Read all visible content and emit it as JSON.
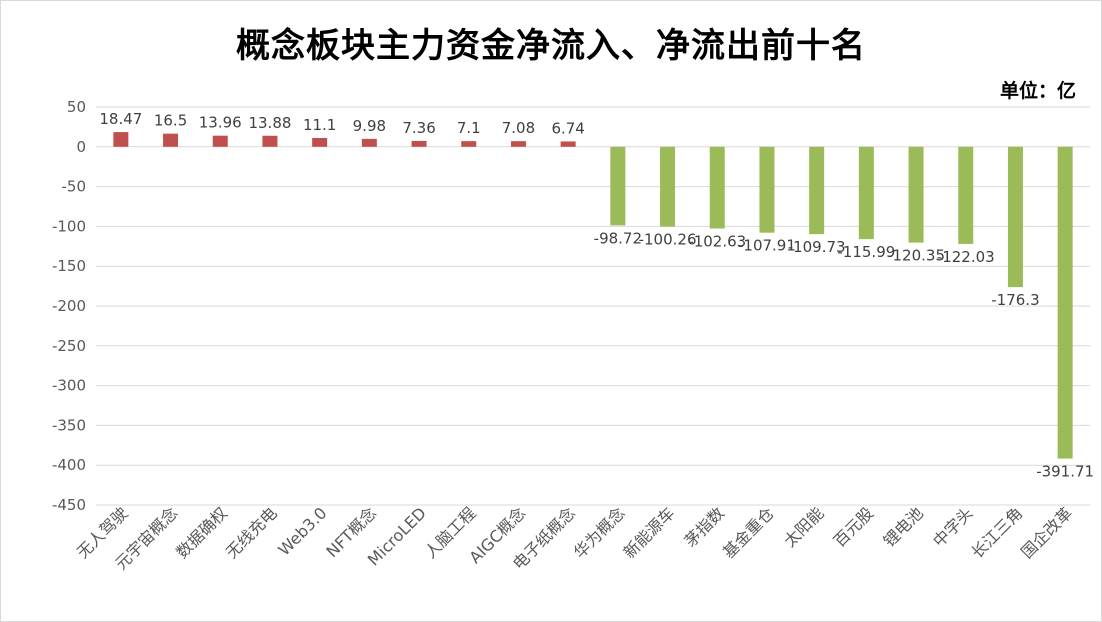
{
  "title": "概念板块主力资金净流入、净流出前十名",
  "unit_label": "单位：亿",
  "colors": {
    "positive": "#c0504d",
    "negative": "#9bbb59",
    "grid": "#d9d9d9",
    "axis_text": "#595959"
  },
  "chart_data": {
    "type": "bar",
    "title": "概念板块主力资金净流入、净流出前十名",
    "xlabel": "",
    "ylabel": "",
    "ylim": [
      -450,
      50
    ],
    "ytick_step": 50,
    "yticks": [
      "50",
      "0",
      "-50",
      "-100",
      "-150",
      "-200",
      "-250",
      "-300",
      "-350",
      "-400",
      "-450"
    ],
    "grid": true,
    "categories": [
      "无人驾驶",
      "元宇宙概念",
      "数据确权",
      "无线充电",
      "Web3.0",
      "NFT概念",
      "MicroLED",
      "人脑工程",
      "AIGC概念",
      "电子纸概念",
      "华为概念",
      "新能源车",
      "茅指数",
      "基金重仓",
      "太阳能",
      "百元股",
      "锂电池",
      "中字头",
      "长江三角",
      "国企改革"
    ],
    "values": [
      18.47,
      16.5,
      13.96,
      13.88,
      11.1,
      9.98,
      7.36,
      7.1,
      7.08,
      6.74,
      -98.72,
      -100.26,
      -102.63,
      -107.91,
      -109.73,
      -115.99,
      -120.35,
      -122.03,
      -176.3,
      -391.71
    ],
    "data_labels": [
      "18.47",
      "16.5",
      "13.96",
      "13.88",
      "11.1",
      "9.98",
      "7.36",
      "7.1",
      "7.08",
      "6.74",
      "-98.72",
      "-100.26",
      "-102.63",
      "-107.91",
      "-109.73",
      "-115.99",
      "-120.35",
      "-122.03",
      "-176.3",
      "-391.71"
    ]
  }
}
